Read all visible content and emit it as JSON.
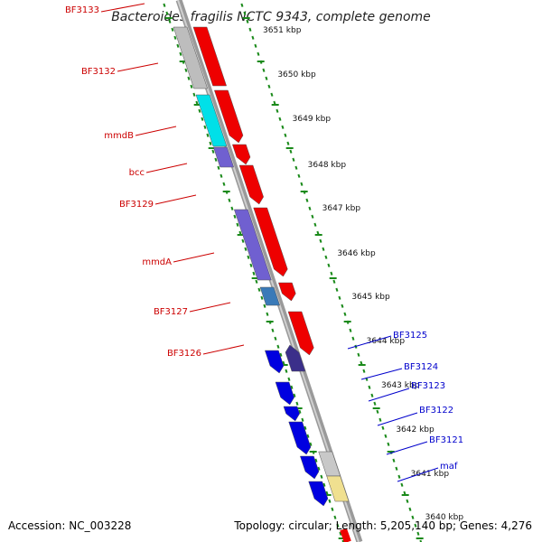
{
  "title": "Bacteroides fragilis NCTC 9343, complete genome",
  "footer": {
    "accession": "Accession: NC_003228",
    "summary": "Topology: circular; Length: 5,205,140 bp; Genes: 4,276"
  },
  "colors": {
    "backbone": "#8a8a8a",
    "tick": "#1a8a1a",
    "label_left": "#cc0000",
    "label_right": "#0000cc"
  },
  "kbp_labels": [
    "3651 kbp",
    "3650 kbp",
    "3649 kbp",
    "3648 kbp",
    "3647 kbp",
    "3646 kbp",
    "3645 kbp",
    "3644 kbp",
    "3643 kbp",
    "3642 kbp",
    "3641 kbp",
    "3640 kbp"
  ],
  "gene_labels_left": [
    "BF3133",
    "BF3132",
    "mmdB",
    "bcc",
    "BF3129",
    "mmdA",
    "BF3127",
    "BF3126"
  ],
  "gene_labels_right": [
    "BF3125",
    "BF3124",
    "BF3123",
    "BF3122",
    "BF3121",
    "maf"
  ],
  "feature_colors": {
    "red": "#ee0000",
    "gray": "#bdbdbd",
    "cyan": "#00e0e8",
    "purple": "#7060d0",
    "steel": "#3a7ab8",
    "blue": "#0000e0",
    "dark_purple": "#3b2f8a",
    "light_gray": "#c8c8c8",
    "yellow": "#f0e090"
  }
}
